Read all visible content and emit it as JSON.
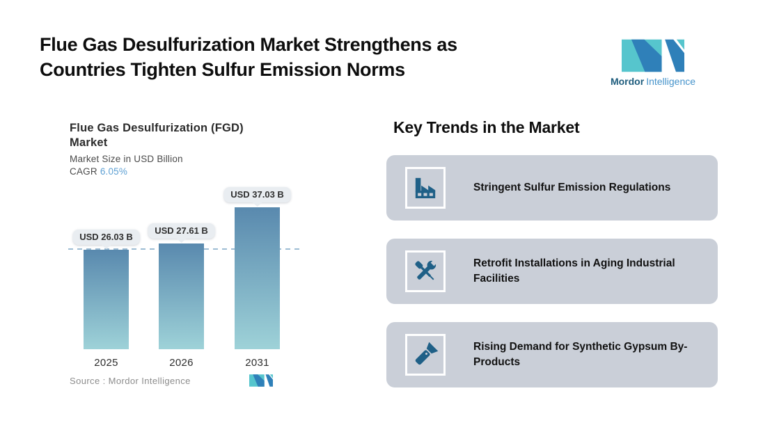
{
  "header": {
    "title_line1": "Flue Gas Desulfurization Market Strengthens as",
    "title_line2": "Countries Tighten Sulfur Emission Norms"
  },
  "brand": {
    "name_bold": "Mordor",
    "name_light": "Intelligence",
    "teal": "#56C5CD",
    "blue": "#2F80B9",
    "text_dark": "#1E5C7D",
    "text_light": "#4593CB"
  },
  "chart_data": {
    "type": "bar",
    "title_line1": "Flue Gas Desulfurization (FGD)",
    "title_line2": "Market",
    "subtitle": "Market Size in USD Billion",
    "cagr_label": "CAGR",
    "cagr_value": "6.05%",
    "cagr_color": "#5C9FD3",
    "categories": [
      "2025",
      "2026",
      "2031"
    ],
    "values": [
      26.03,
      27.61,
      37.03
    ],
    "bar_labels": [
      "USD 26.03 B",
      "USD 27.61 B",
      "USD 37.03 B"
    ],
    "unit": "USD Billion",
    "ylim": [
      0,
      37.03
    ],
    "reference_line_value": 26.03,
    "reference_line_style": "dashed",
    "dashed_line_color": "#9CBCD3",
    "bar_gradient_top": "#5989AE",
    "bar_gradient_bottom": "#9ED2D8",
    "grid": false,
    "legend": false,
    "source_label": "Source :  Mordor Intelligence"
  },
  "trends": {
    "heading": "Key Trends in the Market",
    "cards": [
      {
        "icon": "factory-icon",
        "label": "Stringent Sulfur Emission Regulations"
      },
      {
        "icon": "tools-icon",
        "label": "Retrofit Installations in Aging Industrial Facilities"
      },
      {
        "icon": "flashlight-icon",
        "label": "Rising Demand for Synthetic Gypsum By-Products"
      }
    ],
    "card_bg": "#CACFD8",
    "icon_color": "#1F6087"
  }
}
